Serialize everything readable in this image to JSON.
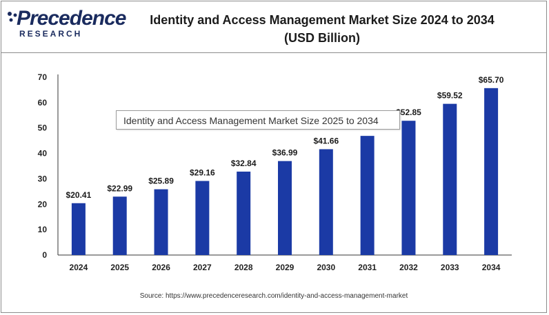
{
  "brand": {
    "logo_top": "Precedence",
    "logo_bottom": "RESEARCH",
    "icon": "precedence-logo-icon",
    "color": "#1a2b5e"
  },
  "header": {
    "title_line1": "Identity and Access Management Market Size 2024 to 2034",
    "title_line2": "(USD Billion)"
  },
  "tooltip": {
    "text": "Identity and Access Management Market Size 2025 to 2034"
  },
  "source": "Source: https://www.precedenceresearch.com/identity-and-access-management-market",
  "chart_data": {
    "type": "bar",
    "categories": [
      "2024",
      "2025",
      "2026",
      "2027",
      "2028",
      "2029",
      "2030",
      "2031",
      "2032",
      "2033",
      "2034"
    ],
    "values": [
      20.41,
      22.99,
      25.89,
      29.16,
      32.84,
      36.99,
      41.66,
      46.9,
      52.85,
      59.52,
      65.7
    ],
    "data_labels": [
      "$20.41",
      "$22.99",
      "$25.89",
      "$29.16",
      "$32.84",
      "$36.99",
      "$41.66",
      "",
      "$52.85",
      "$59.52",
      "$65.70"
    ],
    "yticks": [
      0,
      10,
      20,
      30,
      40,
      50,
      60,
      70
    ],
    "ylim": [
      0,
      70
    ],
    "bar_color": "#1b3aa5",
    "grid": false
  }
}
